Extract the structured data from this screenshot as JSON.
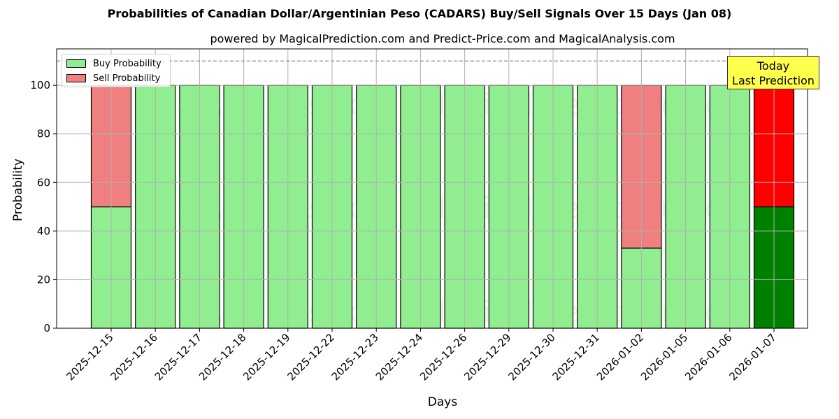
{
  "title": "Probabilities of Canadian Dollar/Argentinian Peso (CADARS) Buy/Sell Signals Over 15 Days (Jan 08)",
  "subtitle": "powered by MagicalPrediction.com and Predict-Price.com and MagicalAnalysis.com",
  "legend": {
    "buy_label": "Buy Probability",
    "sell_label": "Sell Probability"
  },
  "annotation": {
    "line1": "Today",
    "line2": "Last Prediction"
  },
  "colors": {
    "buy": "#90ee90",
    "sell": "#f08080",
    "today_buy": "#008000",
    "today_sell": "#ff0000",
    "annotation_bg": "#ffff4d",
    "threshold_line": "#808080"
  },
  "watermarks": [
    "MagicalAnalysis.com",
    "MagicalPrediction.com"
  ],
  "chart_data": {
    "type": "bar",
    "stacked": true,
    "title": "Probabilities of Canadian Dollar/Argentinian Peso (CADARS) Buy/Sell Signals Over 15 Days (Jan 08)",
    "subtitle": "powered by MagicalPrediction.com and Predict-Price.com and MagicalAnalysis.com",
    "xlabel": "Days",
    "ylabel": "Probability",
    "ylim": [
      0,
      115
    ],
    "yticks": [
      0,
      20,
      40,
      60,
      80,
      100
    ],
    "grid": true,
    "legend_position": "upper left",
    "threshold_line": 110,
    "categories": [
      "2025-12-15",
      "2025-12-16",
      "2025-12-17",
      "2025-12-18",
      "2025-12-19",
      "2025-12-22",
      "2025-12-23",
      "2025-12-24",
      "2025-12-26",
      "2025-12-29",
      "2025-12-30",
      "2025-12-31",
      "2026-01-02",
      "2026-01-05",
      "2026-01-06",
      "2026-01-07"
    ],
    "series": [
      {
        "name": "Buy Probability",
        "values": [
          50,
          100,
          100,
          100,
          100,
          100,
          100,
          100,
          100,
          100,
          100,
          100,
          33,
          100,
          100,
          50
        ]
      },
      {
        "name": "Sell Probability",
        "values": [
          50,
          0,
          0,
          0,
          0,
          0,
          0,
          0,
          0,
          0,
          0,
          0,
          67,
          0,
          0,
          50
        ]
      }
    ],
    "annotations": [
      {
        "text": "Today\nLast Prediction",
        "x": "2026-01-07"
      }
    ]
  }
}
